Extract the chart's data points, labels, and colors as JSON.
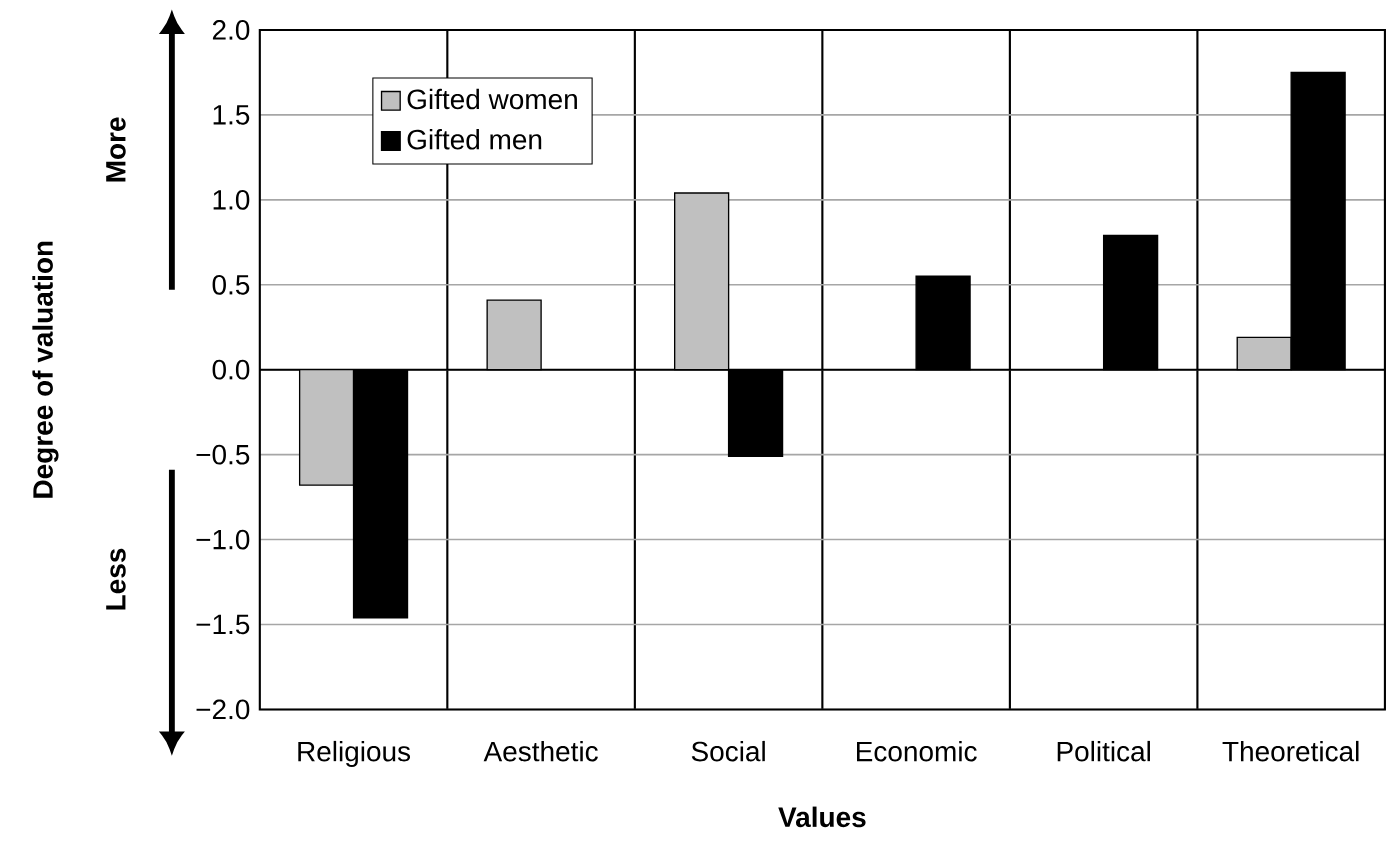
{
  "chart_data": {
    "type": "bar",
    "xlabel": "Values",
    "ylabel": "Degree of valuation",
    "categories": [
      "Religious",
      "Aesthetic",
      "Social",
      "Economic",
      "Political",
      "Theoretical"
    ],
    "series": [
      {
        "name": "Gifted women",
        "color": "#c0c0c0",
        "values": [
          -0.68,
          0.41,
          1.04,
          null,
          null,
          0.19
        ]
      },
      {
        "name": "Gifted men",
        "color": "#000000",
        "values": [
          -1.46,
          null,
          -0.51,
          0.55,
          0.79,
          1.75
        ]
      }
    ],
    "ylim": [
      -2,
      2
    ],
    "yticks": [
      {
        "value": -2,
        "label": "−2.0"
      },
      {
        "value": -1.5,
        "label": "−1.5"
      },
      {
        "value": -1,
        "label": "−1.0"
      },
      {
        "value": -0.5,
        "label": "−0.5"
      },
      {
        "value": 0,
        "label": "0.0"
      },
      {
        "value": 0.5,
        "label": "0.5"
      },
      {
        "value": 1,
        "label": "1.0"
      },
      {
        "value": 1.5,
        "label": "1.5"
      },
      {
        "value": 2,
        "label": "2.0"
      }
    ],
    "grid": "y",
    "legend": "top left",
    "annotations": [
      "More",
      "Less"
    ]
  }
}
